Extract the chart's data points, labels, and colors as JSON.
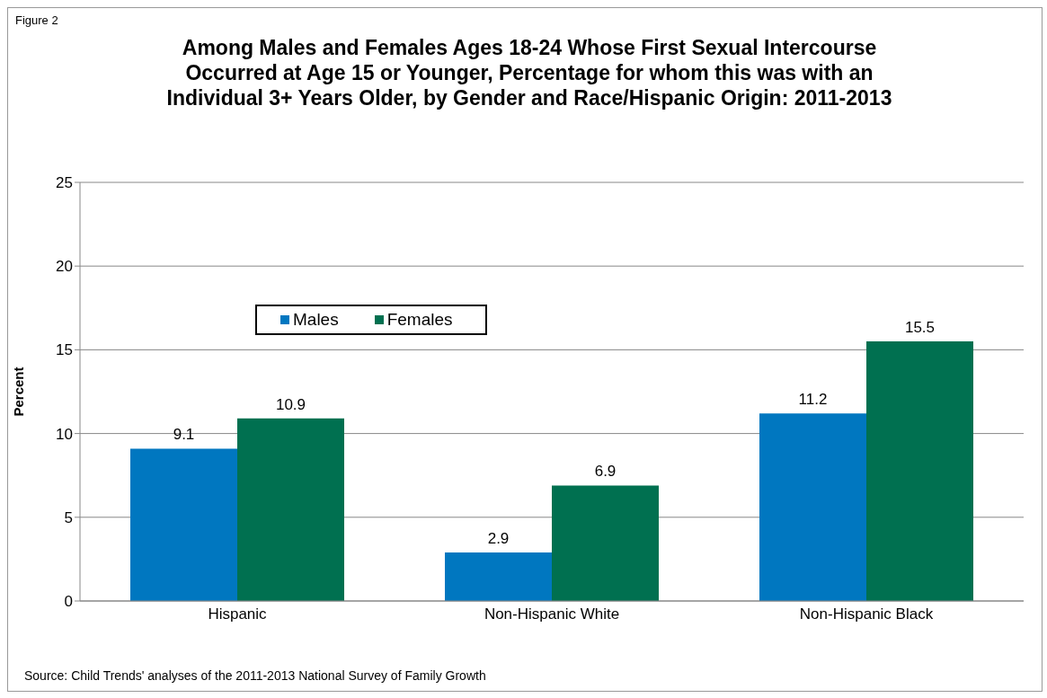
{
  "chart_data": {
    "type": "bar",
    "title": "Among Males and Females Ages 18-24 Whose First Sexual Intercourse Occurred at Age 15 or Younger, Percentage for whom this was with an Individual 3+ Years Older, by Gender and Race/Hispanic Origin: 2011-2013",
    "ylabel": "Percent",
    "categories": [
      "Hispanic",
      "Non-Hispanic White",
      "Non-Hispanic Black"
    ],
    "series": [
      {
        "name": "Males",
        "color": "#0077c0",
        "values": [
          9.1,
          2.9,
          11.2
        ]
      },
      {
        "name": "Females",
        "color": "#007050",
        "values": [
          10.9,
          6.9,
          15.5
        ]
      }
    ],
    "ylim": [
      0,
      25
    ],
    "yticks": [
      0,
      5,
      10,
      15,
      20,
      25
    ],
    "grid": "y",
    "legend": "top left",
    "data_labels": true,
    "annotations": [
      "Figure 2",
      "Source: Child Trends' analyses of the 2011-2013 National Survey of Family Growth"
    ]
  }
}
